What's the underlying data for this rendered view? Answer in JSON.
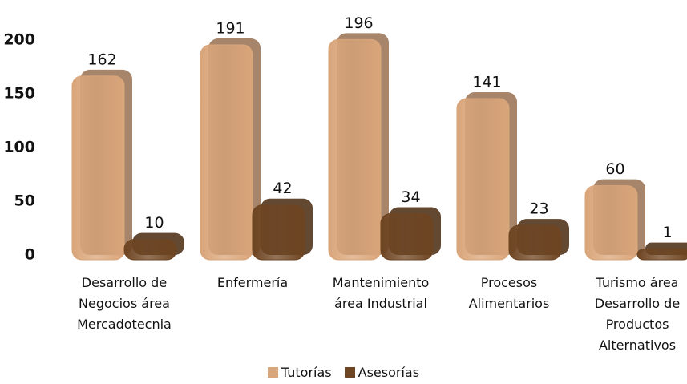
{
  "chart_data": {
    "type": "bar",
    "categories": [
      "Desarrollo de Negocios área Mercadotecnia",
      "Enfermería",
      "Mantenimiento área Industrial",
      "Procesos Alimentarios",
      "Turismo área Desarrollo de Productos Alternativos"
    ],
    "series": [
      {
        "name": "Tutorías",
        "color": "#d9a57a",
        "values": [
          162,
          191,
          196,
          141,
          60
        ]
      },
      {
        "name": "Asesorías",
        "color": "#6e4522",
        "values": [
          10,
          42,
          34,
          23,
          1
        ]
      }
    ],
    "ylim": [
      0,
      200
    ],
    "yticks": [
      0,
      50,
      100,
      150,
      200
    ],
    "grid": false,
    "legend": "bottom"
  }
}
